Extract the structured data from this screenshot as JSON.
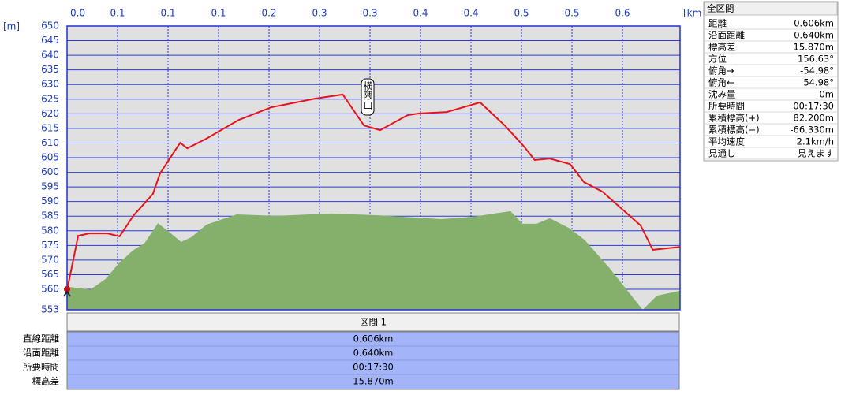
{
  "chart_data": {
    "type": "line",
    "y_unit_label": "[m]",
    "x_unit_label": "[km]",
    "annotation": "横隈山",
    "xlim": [
      0,
      0.607
    ],
    "ylim": [
      553,
      650
    ],
    "xticks": [
      {
        "value": 0,
        "label": "0.0"
      },
      {
        "value": 0.05,
        "label": "0.1"
      },
      {
        "value": 0.1,
        "label": "0.1"
      },
      {
        "value": 0.15,
        "label": "0.1"
      },
      {
        "value": 0.2,
        "label": "0.2"
      },
      {
        "value": 0.25,
        "label": "0.3"
      },
      {
        "value": 0.3,
        "label": "0.3"
      },
      {
        "value": 0.35,
        "label": "0.4"
      },
      {
        "value": 0.4,
        "label": "0.4"
      },
      {
        "value": 0.45,
        "label": "0.5"
      },
      {
        "value": 0.5,
        "label": "0.5"
      },
      {
        "value": 0.55,
        "label": "0.6"
      }
    ],
    "yticks": [
      553,
      560,
      565,
      570,
      575,
      580,
      585,
      590,
      595,
      600,
      605,
      610,
      615,
      620,
      625,
      630,
      635,
      640,
      645,
      650
    ],
    "grid": true,
    "series": [
      {
        "type": "area",
        "color": "#84b06c",
        "x": [
          0,
          0.023,
          0.038,
          0.052,
          0.065,
          0.077,
          0.09,
          0.1,
          0.113,
          0.123,
          0.138,
          0.168,
          0.207,
          0.261,
          0.308,
          0.371,
          0.402,
          0.439,
          0.451,
          0.465,
          0.478,
          0.498,
          0.513,
          0.537,
          0.57,
          0.584,
          0.607
        ],
        "values": [
          560.9,
          559.9,
          563.5,
          569.2,
          573.2,
          575.9,
          582.6,
          579.9,
          576.2,
          577.8,
          582.1,
          585.6,
          585.1,
          585.9,
          585.3,
          584.0,
          584.8,
          586.7,
          582.4,
          582.4,
          584.3,
          580.8,
          576.7,
          567.3,
          553,
          557.8,
          559.5
        ]
      },
      {
        "color": "#e8141c",
        "x": [
          0,
          0.011,
          0.022,
          0.04,
          0.052,
          0.066,
          0.085,
          0.092,
          0.112,
          0.119,
          0.138,
          0.17,
          0.202,
          0.246,
          0.273,
          0.294,
          0.31,
          0.337,
          0.348,
          0.376,
          0.409,
          0.434,
          0.452,
          0.463,
          0.478,
          0.498,
          0.512,
          0.53,
          0.568,
          0.58,
          0.607
        ],
        "values": [
          559.7,
          578.3,
          579.1,
          579.1,
          578.1,
          585.3,
          592.6,
          599.6,
          610.1,
          608.2,
          611.5,
          617.9,
          622.2,
          625.2,
          626.6,
          616.0,
          614.4,
          619.5,
          620.1,
          620.6,
          623.9,
          615.8,
          609.0,
          604.2,
          604.7,
          602.8,
          596.6,
          593.4,
          581.8,
          573.5,
          574.5
        ]
      }
    ]
  },
  "summary_panel": {
    "title": "全区間",
    "rows": [
      [
        "距離",
        "0.606km"
      ],
      [
        "沿面距離",
        "0.640km"
      ],
      [
        "標高差",
        "15.870m"
      ],
      [
        "方位",
        "156.63°"
      ],
      [
        "俯角→",
        "-54.98°"
      ],
      [
        "俯角←",
        "54.98°"
      ],
      [
        "沈み量",
        "-0m"
      ],
      [
        "所要時間",
        "00:17:30"
      ],
      [
        "累積標高(+)",
        "82.200m"
      ],
      [
        "累積標高(−)",
        "-66.330m"
      ],
      [
        "平均速度",
        "2.1km/h"
      ],
      [
        "見通し",
        "見えます"
      ]
    ]
  },
  "segment_table": {
    "header": "区間 1",
    "rows": [
      [
        "直線距離",
        "0.606km"
      ],
      [
        "沿面距離",
        "0.640km"
      ],
      [
        "所要時間",
        "00:17:30"
      ],
      [
        "標高差",
        "15.870m"
      ]
    ]
  }
}
